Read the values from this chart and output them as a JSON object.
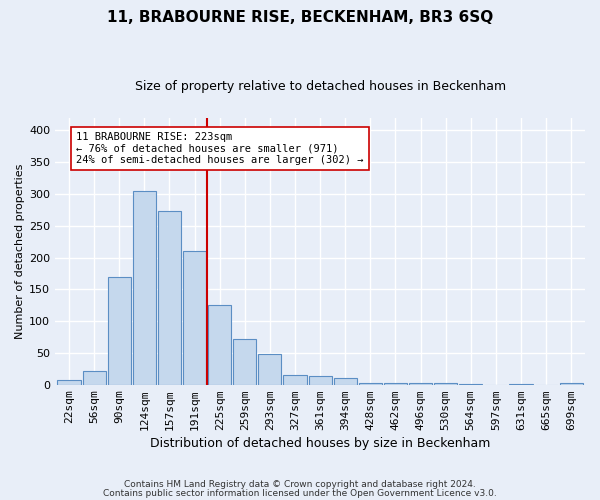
{
  "title": "11, BRABOURNE RISE, BECKENHAM, BR3 6SQ",
  "subtitle": "Size of property relative to detached houses in Beckenham",
  "xlabel": "Distribution of detached houses by size in Beckenham",
  "ylabel": "Number of detached properties",
  "footnote1": "Contains HM Land Registry data © Crown copyright and database right 2024.",
  "footnote2": "Contains public sector information licensed under the Open Government Licence v3.0.",
  "bar_labels": [
    "22sqm",
    "56sqm",
    "90sqm",
    "124sqm",
    "157sqm",
    "191sqm",
    "225sqm",
    "259sqm",
    "293sqm",
    "327sqm",
    "361sqm",
    "394sqm",
    "428sqm",
    "462sqm",
    "496sqm",
    "530sqm",
    "564sqm",
    "597sqm",
    "631sqm",
    "665sqm",
    "699sqm"
  ],
  "bar_values": [
    7,
    21,
    170,
    305,
    273,
    211,
    125,
    72,
    48,
    15,
    14,
    10,
    3,
    2,
    2,
    2,
    1,
    0,
    1,
    0,
    3
  ],
  "bar_color": "#c5d8ed",
  "bar_edge_color": "#5b8ec4",
  "vline_x_index": 6,
  "vline_color": "#cc0000",
  "annotation_text": "11 BRABOURNE RISE: 223sqm\n← 76% of detached houses are smaller (971)\n24% of semi-detached houses are larger (302) →",
  "annotation_box_color": "#ffffff",
  "annotation_box_edge": "#cc0000",
  "ylim": [
    0,
    420
  ],
  "yticks": [
    0,
    50,
    100,
    150,
    200,
    250,
    300,
    350,
    400
  ],
  "background_color": "#e8eef8",
  "plot_bg_color": "#e8eef8",
  "grid_color": "#ffffff",
  "title_fontsize": 11,
  "subtitle_fontsize": 9,
  "xlabel_fontsize": 9,
  "ylabel_fontsize": 8,
  "tick_fontsize": 8,
  "annot_fontsize": 7.5
}
